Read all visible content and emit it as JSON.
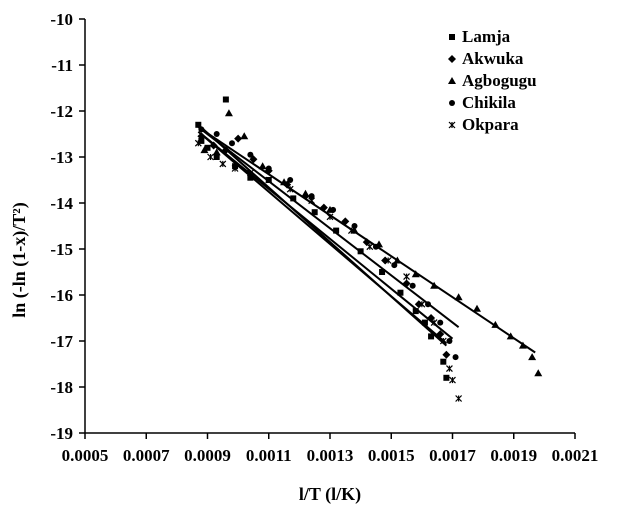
{
  "chart_data": {
    "type": "scatter",
    "title": "",
    "xlabel": "l/T (l/K)",
    "ylabel": "ln (-ln (1-x)/T²)",
    "xlim": [
      0.0005,
      0.0021
    ],
    "ylim": [
      -19,
      -10
    ],
    "x_ticks": [
      "0.0005",
      "0.0007",
      "0.0009",
      "0.0011",
      "0.0013",
      "0.0015",
      "0.0017",
      "0.0019",
      "0.0021"
    ],
    "y_ticks": [
      "-10",
      "-11",
      "-12",
      "-13",
      "-14",
      "-15",
      "-16",
      "-17",
      "-18",
      "-19"
    ],
    "grid": false,
    "legend_position": "top-right",
    "series": [
      {
        "name": "Lamja",
        "marker": "square",
        "points": [
          [
            0.00087,
            -12.3
          ],
          [
            0.00088,
            -12.65
          ],
          [
            0.0009,
            -12.8
          ],
          [
            0.00093,
            -13.0
          ],
          [
            0.00096,
            -11.75
          ],
          [
            0.00099,
            -13.2
          ],
          [
            0.00104,
            -13.45
          ],
          [
            0.0011,
            -13.5
          ],
          [
            0.00118,
            -13.9
          ],
          [
            0.00125,
            -14.2
          ],
          [
            0.00132,
            -14.6
          ],
          [
            0.0014,
            -15.05
          ],
          [
            0.00147,
            -15.5
          ],
          [
            0.00153,
            -15.95
          ],
          [
            0.00158,
            -16.35
          ],
          [
            0.00161,
            -16.6
          ],
          [
            0.00163,
            -16.9
          ],
          [
            0.00167,
            -17.45
          ],
          [
            0.00168,
            -17.8
          ]
        ],
        "fit": [
          [
            0.00087,
            -12.3
          ],
          [
            0.00168,
            -17.1
          ]
        ]
      },
      {
        "name": "Akwuka",
        "marker": "diamond",
        "points": [
          [
            0.00088,
            -12.55
          ],
          [
            0.00092,
            -12.75
          ],
          [
            0.00096,
            -12.85
          ],
          [
            0.001,
            -12.6
          ],
          [
            0.00105,
            -13.05
          ],
          [
            0.0011,
            -13.3
          ],
          [
            0.00116,
            -13.6
          ],
          [
            0.00122,
            -13.85
          ],
          [
            0.00128,
            -14.1
          ],
          [
            0.00135,
            -14.4
          ],
          [
            0.00142,
            -14.85
          ],
          [
            0.00148,
            -15.25
          ],
          [
            0.00155,
            -15.75
          ],
          [
            0.00159,
            -16.2
          ],
          [
            0.00163,
            -16.5
          ],
          [
            0.00166,
            -16.85
          ],
          [
            0.00168,
            -17.3
          ]
        ],
        "fit": [
          [
            0.00088,
            -12.4
          ],
          [
            0.00172,
            -16.7
          ]
        ]
      },
      {
        "name": "Agbogugu",
        "marker": "triangle",
        "points": [
          [
            0.00089,
            -12.85
          ],
          [
            0.00093,
            -12.9
          ],
          [
            0.00097,
            -12.05
          ],
          [
            0.00102,
            -12.55
          ],
          [
            0.00108,
            -13.2
          ],
          [
            0.00115,
            -13.55
          ],
          [
            0.00122,
            -13.8
          ],
          [
            0.0013,
            -14.15
          ],
          [
            0.00138,
            -14.6
          ],
          [
            0.00146,
            -14.9
          ],
          [
            0.00152,
            -15.25
          ],
          [
            0.00158,
            -15.55
          ],
          [
            0.00164,
            -15.8
          ],
          [
            0.00172,
            -16.05
          ],
          [
            0.00178,
            -16.3
          ],
          [
            0.00184,
            -16.65
          ],
          [
            0.00189,
            -16.9
          ],
          [
            0.00193,
            -17.1
          ],
          [
            0.00196,
            -17.35
          ],
          [
            0.00198,
            -17.7
          ]
        ],
        "fit": [
          [
            0.00087,
            -12.35
          ],
          [
            0.00197,
            -17.25
          ]
        ]
      },
      {
        "name": "Chikila",
        "marker": "circle",
        "points": [
          [
            0.00088,
            -12.4
          ],
          [
            0.00093,
            -12.5
          ],
          [
            0.00098,
            -12.7
          ],
          [
            0.00104,
            -12.95
          ],
          [
            0.0011,
            -13.25
          ],
          [
            0.00117,
            -13.5
          ],
          [
            0.00124,
            -13.85
          ],
          [
            0.00131,
            -14.15
          ],
          [
            0.00138,
            -14.5
          ],
          [
            0.00145,
            -14.95
          ],
          [
            0.00151,
            -15.35
          ],
          [
            0.00157,
            -15.8
          ],
          [
            0.00162,
            -16.2
          ],
          [
            0.00166,
            -16.6
          ],
          [
            0.00169,
            -17.0
          ],
          [
            0.00171,
            -17.35
          ]
        ],
        "fit": [
          [
            0.00088,
            -12.5
          ],
          [
            0.0017,
            -16.95
          ]
        ]
      },
      {
        "name": "Okpara",
        "marker": "x",
        "points": [
          [
            0.00087,
            -12.7
          ],
          [
            0.00091,
            -13.0
          ],
          [
            0.00095,
            -13.15
          ],
          [
            0.00099,
            -13.25
          ],
          [
            0.00104,
            -13.35
          ],
          [
            0.0011,
            -13.5
          ],
          [
            0.00117,
            -13.7
          ],
          [
            0.00124,
            -13.95
          ],
          [
            0.0013,
            -14.3
          ],
          [
            0.00137,
            -14.6
          ],
          [
            0.00143,
            -14.95
          ],
          [
            0.00149,
            -15.25
          ],
          [
            0.00155,
            -15.6
          ],
          [
            0.0016,
            -16.2
          ],
          [
            0.00164,
            -16.6
          ],
          [
            0.00167,
            -17.0
          ],
          [
            0.00169,
            -17.6
          ],
          [
            0.0017,
            -17.85
          ],
          [
            0.00172,
            -18.25
          ]
        ],
        "fit": [
          [
            0.00087,
            -12.45
          ],
          [
            0.00168,
            -17.05
          ]
        ]
      }
    ]
  }
}
